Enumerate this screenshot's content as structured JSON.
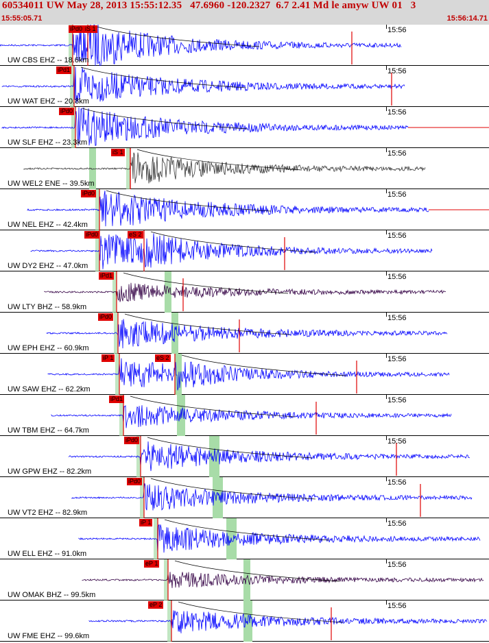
{
  "header": {
    "title": "60534011 UW May 28, 2013 15:55:12.35   47.6960 -120.2327  6.7 2.41 Md le amyw UW 01   3",
    "start_time": "15:55:05.71",
    "end_time": "15:56:14.71"
  },
  "colors": {
    "trace_blue": "#0000ff",
    "trace_dark": "#333333",
    "trace_purple": "#330044",
    "pick_red": "#e00000",
    "s_band": "#a8dca8"
  },
  "traces": [
    {
      "label": "UW CBS EHZ -- 18.6km",
      "tick": "15:56",
      "picks": [
        "iPd0",
        "iS 1"
      ],
      "color": "#0000ff"
    },
    {
      "label": "UW WAT EHZ -- 20.8km",
      "tick": "15:56",
      "picks": [
        "iPd1"
      ],
      "color": "#0000ff"
    },
    {
      "label": "UW SLF EHZ -- 23.3km",
      "tick": "15:56",
      "picks": [
        "iPd0"
      ],
      "color": "#0000ff"
    },
    {
      "label": "UW WEL2 ENE -- 39.5km",
      "tick": "15:56",
      "picks": [
        "iS 1"
      ],
      "color": "#333333"
    },
    {
      "label": "UW NEL EHZ -- 42.4km",
      "tick": "15:56",
      "picks": [
        "iPd0"
      ],
      "color": "#0000ff"
    },
    {
      "label": "UW DY2 EHZ -- 47.0km",
      "tick": "15:56",
      "picks": [
        "iPd0",
        "eS 2"
      ],
      "color": "#0000ff"
    },
    {
      "label": "UW LTY BHZ -- 58.9km",
      "tick": "15:56",
      "picks": [
        "iPd1"
      ],
      "color": "#330044"
    },
    {
      "label": "UW EPH EHZ -- 60.9km",
      "tick": "15:56",
      "picks": [
        "iPd0"
      ],
      "color": "#0000ff"
    },
    {
      "label": "UW SAW EHZ -- 62.2km",
      "tick": "15:56",
      "picks": [
        "iP 1",
        "eS 2"
      ],
      "color": "#0000ff"
    },
    {
      "label": "UW TBM EHZ -- 64.7km",
      "tick": "15:56",
      "picks": [
        "iPd1"
      ],
      "color": "#0000ff"
    },
    {
      "label": "UW GPW EHZ -- 82.2km",
      "tick": "15:56",
      "picks": [
        "iPd0"
      ],
      "color": "#0000ff"
    },
    {
      "label": "UW VT2 EHZ -- 82.9km",
      "tick": "15:56",
      "picks": [
        "iPd0"
      ],
      "color": "#0000ff"
    },
    {
      "label": "UW ELL EHZ -- 91.0km",
      "tick": "15:56",
      "picks": [
        "iP 1"
      ],
      "color": "#0000ff"
    },
    {
      "label": "UW OMAK BHZ -- 99.5km",
      "tick": "15:56",
      "picks": [
        "eP 1"
      ],
      "color": "#330044"
    },
    {
      "label": "UW FME EHZ -- 99.6km",
      "tick": "15:56",
      "picks": [
        "eP 2"
      ],
      "color": "#0000ff"
    }
  ]
}
